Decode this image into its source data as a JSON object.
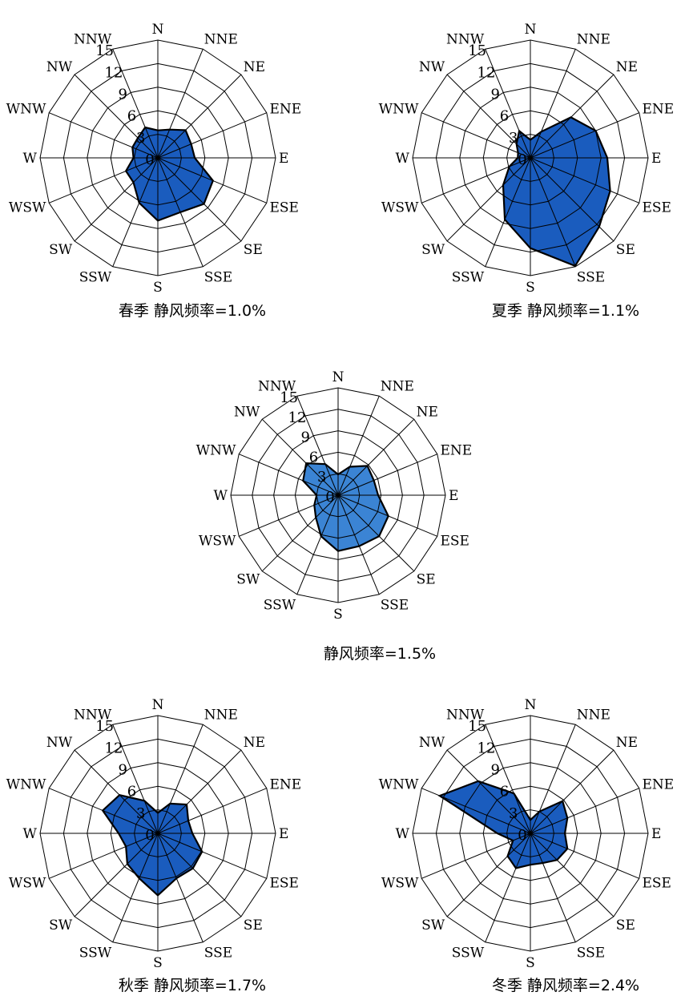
{
  "chart_data": [
    {
      "type": "radar",
      "title": "春季 静风频率=1.0%",
      "directions": [
        "N",
        "NNE",
        "NE",
        "ENE",
        "E",
        "ESE",
        "SE",
        "SSE",
        "S",
        "SSW",
        "SW",
        "WSW",
        "W",
        "WNW",
        "NW",
        "NNW"
      ],
      "rings": [
        0,
        3,
        6,
        9,
        12,
        15
      ],
      "rmax": 15,
      "values": [
        3.5,
        3.9,
        5.0,
        4.6,
        4.7,
        7.6,
        8.3,
        7.5,
        8.0,
        6.2,
        4.4,
        4.4,
        3.1,
        3.5,
        3.6,
        4.2
      ],
      "fill": "#1a5cbe"
    },
    {
      "type": "radar",
      "title": "夏季 静风频率=1.1%",
      "directions": [
        "N",
        "NNE",
        "NE",
        "ENE",
        "E",
        "ESE",
        "SE",
        "SSE",
        "S",
        "SSW",
        "SW",
        "WSW",
        "W",
        "WNW",
        "NW",
        "NNW"
      ],
      "rings": [
        0,
        3,
        6,
        9,
        12,
        15
      ],
      "rmax": 15,
      "values": [
        2.3,
        3.6,
        7.3,
        9.0,
        9.8,
        11.0,
        12.4,
        14.9,
        11.5,
        8.5,
        4.9,
        2.9,
        1.6,
        1.7,
        2.5,
        3.7
      ],
      "fill": "#1a5cbe"
    },
    {
      "type": "radar",
      "title": "静风频率=1.5%",
      "directions": [
        "N",
        "NNE",
        "NE",
        "ENE",
        "E",
        "ESE",
        "SE",
        "SSE",
        "S",
        "SSW",
        "SW",
        "WSW",
        "W",
        "WNW",
        "NW",
        "NNW"
      ],
      "rings": [
        0,
        3,
        6,
        9,
        12,
        15
      ],
      "rmax": 15,
      "values": [
        2.9,
        4.3,
        5.8,
        5.4,
        5.6,
        7.6,
        8.1,
        7.7,
        7.8,
        6.2,
        4.4,
        3.6,
        3.0,
        5.3,
        6.3,
        4.7
      ],
      "fill": "#3b84d4"
    },
    {
      "type": "radar",
      "title": "秋季 静风频率=1.7%",
      "directions": [
        "N",
        "NNE",
        "NE",
        "ENE",
        "E",
        "ESE",
        "SE",
        "SSE",
        "S",
        "SSW",
        "SW",
        "WSW",
        "W",
        "WNW",
        "NW",
        "NNW"
      ],
      "rings": [
        0,
        3,
        6,
        9,
        12,
        15
      ],
      "rmax": 15,
      "values": [
        2.6,
        4.1,
        5.2,
        4.2,
        4.4,
        6.1,
        6.3,
        6.2,
        7.9,
        6.2,
        5.5,
        4.4,
        5.0,
        7.6,
        6.9,
        4.5
      ],
      "fill": "#1a5cbe"
    },
    {
      "type": "radar",
      "title": "冬季 静风频率=2.4%",
      "directions": [
        "N",
        "NNE",
        "NE",
        "ENE",
        "E",
        "ESE",
        "SE",
        "SSE",
        "S",
        "SSW",
        "SW",
        "WSW",
        "W",
        "WNW",
        "NW",
        "NNW"
      ],
      "rings": [
        0,
        3,
        6,
        9,
        12,
        15
      ],
      "rmax": 15,
      "values": [
        1.7,
        3.0,
        5.8,
        5.1,
        4.4,
        5.1,
        4.8,
        4.1,
        4.0,
        4.8,
        4.1,
        2.4,
        4.2,
        12.5,
        9.4,
        5.5
      ],
      "fill": "#1a5cbe"
    }
  ]
}
